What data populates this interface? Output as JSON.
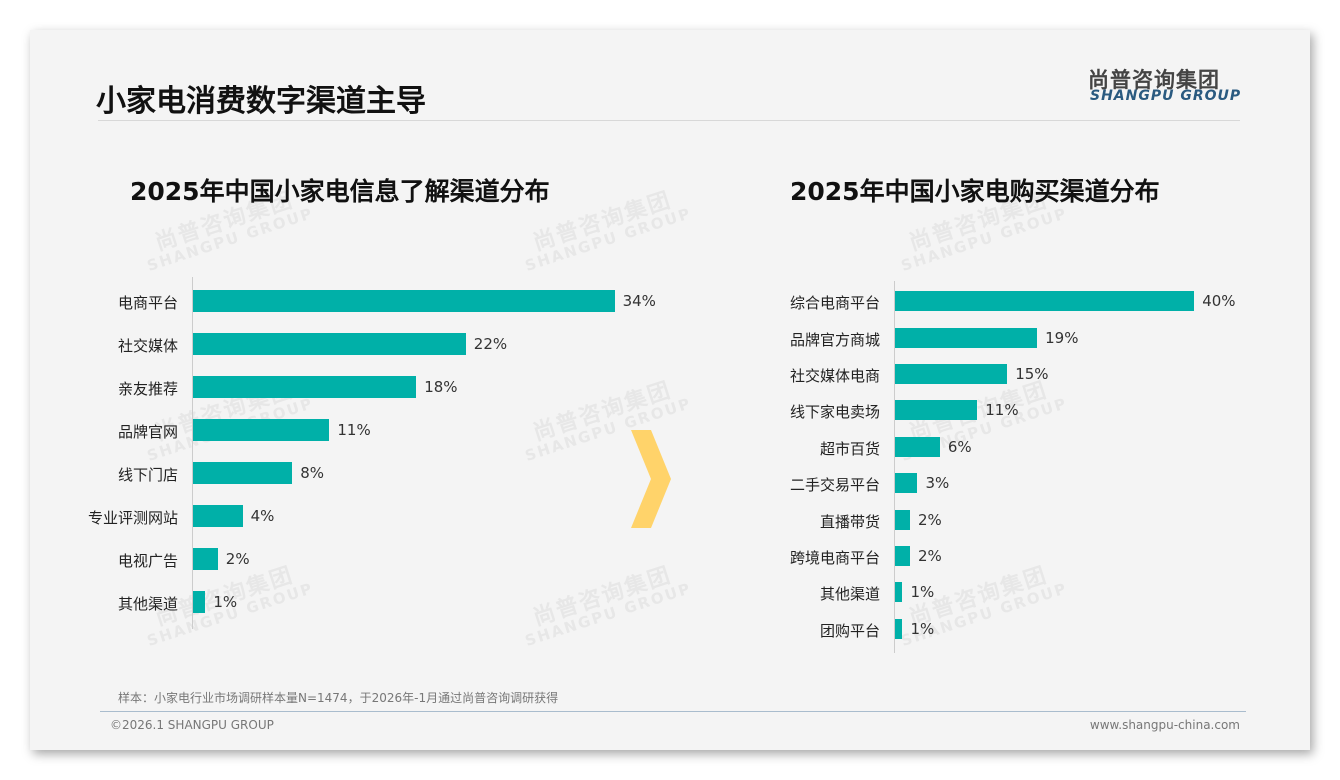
{
  "header": {
    "title": "小家电消费数字渠道主导",
    "logo_cn": "尚普咨询集团",
    "logo_en": "SHANGPU GROUP"
  },
  "watermark": {
    "cn": "尚普咨询集团",
    "en": "SHANGPU GROUP"
  },
  "colors": {
    "bar": "#00b0a8",
    "arrow": "#ffd36a"
  },
  "chart_data": [
    {
      "type": "bar",
      "orientation": "horizontal",
      "title": "2025年中国小家电信息了解渠道分布",
      "categories": [
        "电商平台",
        "社交媒体",
        "亲友推荐",
        "品牌官网",
        "线下门店",
        "专业评测网站",
        "电视广告",
        "其他渠道"
      ],
      "values": [
        34,
        22,
        18,
        11,
        8,
        4,
        2,
        1
      ],
      "labels": [
        "34%",
        "22%",
        "18%",
        "11%",
        "8%",
        "4%",
        "2%",
        "1%"
      ],
      "unit": "%",
      "xlim": [
        0,
        34
      ]
    },
    {
      "type": "bar",
      "orientation": "horizontal",
      "title": "2025年中国小家电购买渠道分布",
      "categories": [
        "综合电商平台",
        "品牌官方商城",
        "社交媒体电商",
        "线下家电卖场",
        "超市百货",
        "二手交易平台",
        "直播带货",
        "跨境电商平台",
        "其他渠道",
        "团购平台"
      ],
      "values": [
        40,
        19,
        15,
        11,
        6,
        3,
        2,
        2,
        1,
        1
      ],
      "labels": [
        "40%",
        "19%",
        "15%",
        "11%",
        "6%",
        "3%",
        "2%",
        "2%",
        "1%",
        "1%"
      ],
      "unit": "%",
      "xlim": [
        0,
        40
      ]
    }
  ],
  "footer": {
    "note": "样本：小家电行业市场调研样本量N=1474，于2026年-1月通过尚普咨询调研获得",
    "copyright": "©2026.1 SHANGPU GROUP",
    "url": "www.shangpu-china.com"
  }
}
